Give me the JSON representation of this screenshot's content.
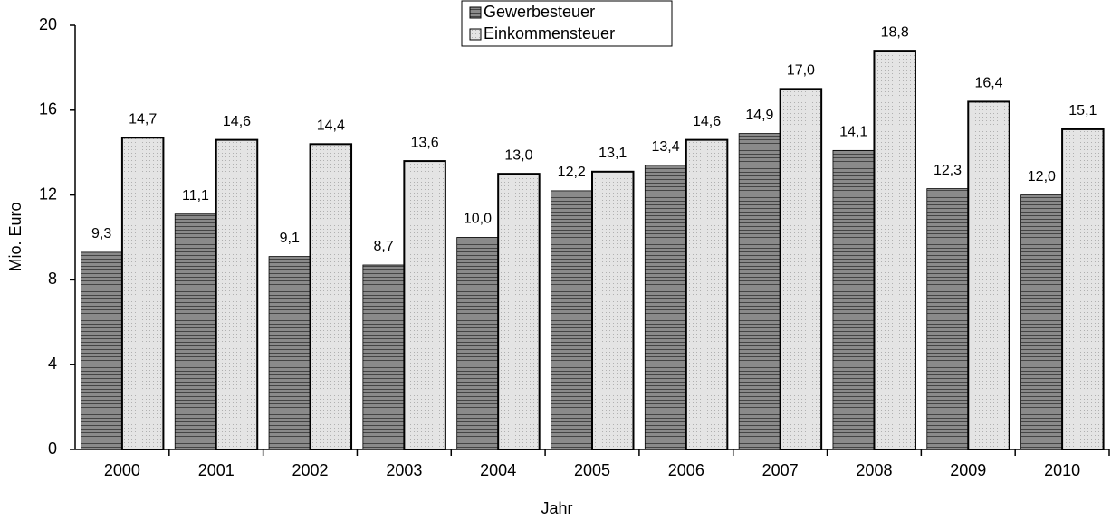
{
  "chart_data": {
    "type": "bar",
    "x_label": "Jahr",
    "y_label": "Mio. Euro",
    "categories": [
      "2000",
      "2001",
      "2002",
      "2003",
      "2004",
      "2005",
      "2006",
      "2007",
      "2008",
      "2009",
      "2010"
    ],
    "series": [
      {
        "name": "Gewerbesteuer",
        "color": "#8a8a8a",
        "values": [
          9.3,
          11.1,
          9.1,
          8.7,
          10.0,
          12.2,
          13.4,
          14.9,
          14.1,
          12.3,
          12.0
        ],
        "value_labels": [
          "9,3",
          "11,1",
          "9,1",
          "8,7",
          "10,0",
          "12,2",
          "13,4",
          "14,9",
          "14,1",
          "12,3",
          "12,0"
        ]
      },
      {
        "name": "Einkommensteuer",
        "color": "#e4e4e4",
        "values": [
          14.7,
          14.6,
          14.4,
          13.6,
          13.0,
          13.1,
          14.6,
          17.0,
          18.8,
          16.4,
          15.1
        ],
        "value_labels": [
          "14,7",
          "14,6",
          "14,4",
          "13,6",
          "13,0",
          "13,1",
          "14,6",
          "17,0",
          "18,8",
          "16,4",
          "15,1"
        ]
      }
    ],
    "ylim": [
      0,
      20
    ],
    "yticks": [
      0,
      4,
      8,
      12,
      16,
      20
    ],
    "grid": false,
    "legend": "top"
  }
}
